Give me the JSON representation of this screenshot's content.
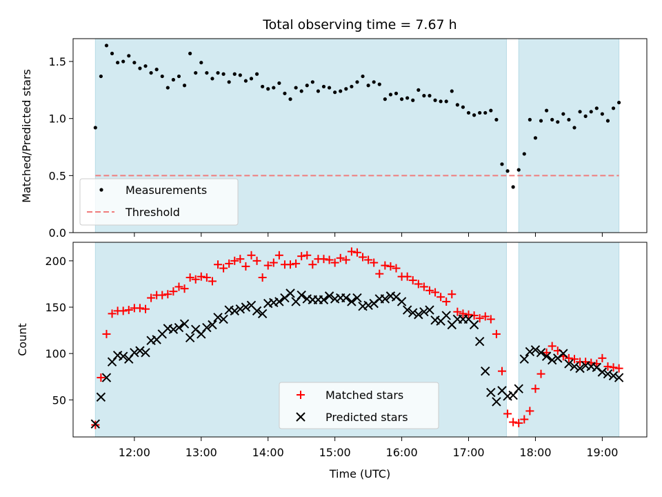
{
  "chart_data": {
    "type": "scatter",
    "title": "Total observing time = 7.67 h",
    "xlabel": "Time (UTC)",
    "x_unit": "hours UTC",
    "xlim": [
      "11:05",
      "19:40"
    ],
    "x_ticks": [
      "12:00",
      "13:00",
      "14:00",
      "15:00",
      "16:00",
      "17:00",
      "18:00",
      "19:00"
    ],
    "shaded_intervals": [
      [
        "11:25",
        "17:34"
      ],
      [
        "17:45",
        "19:15"
      ]
    ],
    "shade_color": "#d3eaf1",
    "panels": [
      {
        "ylabel": "Matched/Predicted stars",
        "ylim": [
          0,
          1.7
        ],
        "y_ticks": [
          "0.0",
          "0.5",
          "1.0",
          "1.5"
        ],
        "threshold": 0.5,
        "legend_position": "lower-left",
        "legend": {
          "measurements": "Measurements",
          "threshold": "Threshold"
        },
        "series": [
          {
            "name": "Measurements",
            "marker": "dot",
            "color": "#000000",
            "x": [
              "11:25",
              "11:30",
              "11:35",
              "11:40",
              "11:45",
              "11:50",
              "11:55",
              "12:00",
              "12:05",
              "12:10",
              "12:15",
              "12:20",
              "12:25",
              "12:30",
              "12:35",
              "12:40",
              "12:45",
              "12:50",
              "12:55",
              "13:00",
              "13:05",
              "13:10",
              "13:15",
              "13:20",
              "13:25",
              "13:30",
              "13:35",
              "13:40",
              "13:45",
              "13:50",
              "13:55",
              "14:00",
              "14:05",
              "14:10",
              "14:15",
              "14:20",
              "14:25",
              "14:30",
              "14:35",
              "14:40",
              "14:45",
              "14:50",
              "14:55",
              "15:00",
              "15:05",
              "15:10",
              "15:15",
              "15:20",
              "15:25",
              "15:30",
              "15:35",
              "15:40",
              "15:45",
              "15:50",
              "15:55",
              "16:00",
              "16:05",
              "16:10",
              "16:15",
              "16:20",
              "16:25",
              "16:30",
              "16:35",
              "16:40",
              "16:45",
              "16:50",
              "16:55",
              "17:00",
              "17:05",
              "17:10",
              "17:15",
              "17:20",
              "17:25",
              "17:30",
              "17:35",
              "17:40",
              "17:45",
              "17:50",
              "17:55",
              "18:00",
              "18:05",
              "18:10",
              "18:15",
              "18:20",
              "18:25",
              "18:30",
              "18:35",
              "18:40",
              "18:45",
              "18:50",
              "18:55",
              "19:00",
              "19:05",
              "19:10",
              "19:15"
            ],
            "y": [
              0.92,
              1.37,
              1.64,
              1.57,
              1.49,
              1.5,
              1.55,
              1.49,
              1.44,
              1.46,
              1.4,
              1.43,
              1.37,
              1.27,
              1.34,
              1.37,
              1.29,
              1.57,
              1.4,
              1.49,
              1.4,
              1.35,
              1.4,
              1.39,
              1.32,
              1.39,
              1.38,
              1.33,
              1.35,
              1.39,
              1.28,
              1.26,
              1.27,
              1.31,
              1.22,
              1.17,
              1.27,
              1.24,
              1.29,
              1.32,
              1.24,
              1.28,
              1.27,
              1.23,
              1.24,
              1.26,
              1.28,
              1.32,
              1.37,
              1.29,
              1.32,
              1.3,
              1.17,
              1.21,
              1.22,
              1.17,
              1.18,
              1.16,
              1.25,
              1.2,
              1.2,
              1.16,
              1.15,
              1.15,
              1.24,
              1.12,
              1.1,
              1.05,
              1.03,
              1.05,
              1.05,
              1.07,
              0.99,
              0.6,
              0.54,
              0.4,
              0.55,
              0.69,
              0.99,
              0.83,
              0.98,
              1.07,
              0.99,
              0.97,
              1.04,
              0.99,
              0.92,
              1.06,
              1.02,
              1.06,
              1.09,
              1.04,
              0.98,
              1.09,
              1.14
            ]
          }
        ]
      },
      {
        "ylabel": "Count",
        "ylim": [
          10,
          220
        ],
        "y_ticks": [
          "50",
          "100",
          "150",
          "200"
        ],
        "legend_position": "lower-center",
        "series": [
          {
            "name": "Matched stars",
            "marker": "plus",
            "color": "#ff0000",
            "x": [
              "11:25",
              "11:30",
              "11:35",
              "11:40",
              "11:45",
              "11:50",
              "11:55",
              "12:00",
              "12:05",
              "12:10",
              "12:15",
              "12:20",
              "12:25",
              "12:30",
              "12:35",
              "12:40",
              "12:45",
              "12:50",
              "12:55",
              "13:00",
              "13:05",
              "13:10",
              "13:15",
              "13:20",
              "13:25",
              "13:30",
              "13:35",
              "13:40",
              "13:45",
              "13:50",
              "13:55",
              "14:00",
              "14:05",
              "14:10",
              "14:15",
              "14:20",
              "14:25",
              "14:30",
              "14:35",
              "14:40",
              "14:45",
              "14:50",
              "14:55",
              "15:00",
              "15:05",
              "15:10",
              "15:15",
              "15:20",
              "15:25",
              "15:30",
              "15:35",
              "15:40",
              "15:45",
              "15:50",
              "15:55",
              "16:00",
              "16:05",
              "16:10",
              "16:15",
              "16:20",
              "16:25",
              "16:30",
              "16:35",
              "16:40",
              "16:45",
              "16:50",
              "16:55",
              "17:00",
              "17:05",
              "17:10",
              "17:15",
              "17:20",
              "17:25",
              "17:30",
              "17:35",
              "17:40",
              "17:45",
              "17:50",
              "17:55",
              "18:00",
              "18:05",
              "18:10",
              "18:15",
              "18:20",
              "18:25",
              "18:30",
              "18:35",
              "18:40",
              "18:45",
              "18:50",
              "18:55",
              "19:00",
              "19:05",
              "19:10",
              "19:15"
            ],
            "y": [
              23,
              74,
              121,
              143,
              146,
              146,
              147,
              149,
              149,
              148,
              160,
              163,
              163,
              164,
              167,
              172,
              170,
              182,
              180,
              183,
              182,
              178,
              196,
              192,
              197,
              200,
              202,
              194,
              206,
              200,
              182,
              195,
              198,
              206,
              196,
              196,
              197,
              205,
              206,
              196,
              202,
              202,
              201,
              198,
              203,
              201,
              210,
              209,
              204,
              201,
              198,
              186,
              195,
              194,
              192,
              183,
              183,
              179,
              175,
              172,
              168,
              166,
              161,
              156,
              164,
              145,
              143,
              142,
              141,
              138,
              140,
              137,
              121,
              81,
              35,
              26,
              25,
              29,
              38,
              62,
              78,
              101,
              108,
              103,
              97,
              95,
              94,
              91,
              91,
              90,
              89,
              95,
              86,
              85,
              84
            ]
          },
          {
            "name": "Predicted stars",
            "marker": "x",
            "color": "#000000",
            "x": [
              "11:25",
              "11:30",
              "11:35",
              "11:40",
              "11:45",
              "11:50",
              "11:55",
              "12:00",
              "12:05",
              "12:10",
              "12:15",
              "12:20",
              "12:25",
              "12:30",
              "12:35",
              "12:40",
              "12:45",
              "12:50",
              "12:55",
              "13:00",
              "13:05",
              "13:10",
              "13:15",
              "13:20",
              "13:25",
              "13:30",
              "13:35",
              "13:40",
              "13:45",
              "13:50",
              "13:55",
              "14:00",
              "14:05",
              "14:10",
              "14:15",
              "14:20",
              "14:25",
              "14:30",
              "14:35",
              "14:40",
              "14:45",
              "14:50",
              "14:55",
              "15:00",
              "15:05",
              "15:10",
              "15:15",
              "15:20",
              "15:25",
              "15:30",
              "15:35",
              "15:40",
              "15:45",
              "15:50",
              "15:55",
              "16:00",
              "16:05",
              "16:10",
              "16:15",
              "16:20",
              "16:25",
              "16:30",
              "16:35",
              "16:40",
              "16:45",
              "16:50",
              "16:55",
              "17:00",
              "17:05",
              "17:10",
              "17:15",
              "17:20",
              "17:25",
              "17:30",
              "17:35",
              "17:40",
              "17:45",
              "17:50",
              "17:55",
              "18:00",
              "18:05",
              "18:10",
              "18:15",
              "18:20",
              "18:25",
              "18:30",
              "18:35",
              "18:40",
              "18:45",
              "18:50",
              "18:55",
              "19:00",
              "19:05",
              "19:10",
              "19:15"
            ],
            "y": [
              24,
              53,
              74,
              91,
              98,
              97,
              94,
              101,
              103,
              101,
              114,
              115,
              121,
              127,
              126,
              128,
              132,
              117,
              126,
              121,
              128,
              131,
              139,
              137,
              147,
              146,
              148,
              150,
              152,
              146,
              143,
              154,
              155,
              156,
              160,
              165,
              156,
              163,
              159,
              158,
              158,
              158,
              162,
              159,
              160,
              160,
              156,
              160,
              151,
              152,
              154,
              159,
              159,
              162,
              161,
              156,
              147,
              144,
              142,
              145,
              147,
              136,
              135,
              141,
              131,
              137,
              137,
              137,
              131,
              113,
              81,
              58,
              48,
              60,
              54,
              55,
              62,
              94,
              102,
              104,
              101,
              97,
              93,
              95,
              100,
              89,
              86,
              84,
              87,
              86,
              85,
              80,
              78,
              76,
              74
            ]
          }
        ]
      }
    ]
  }
}
